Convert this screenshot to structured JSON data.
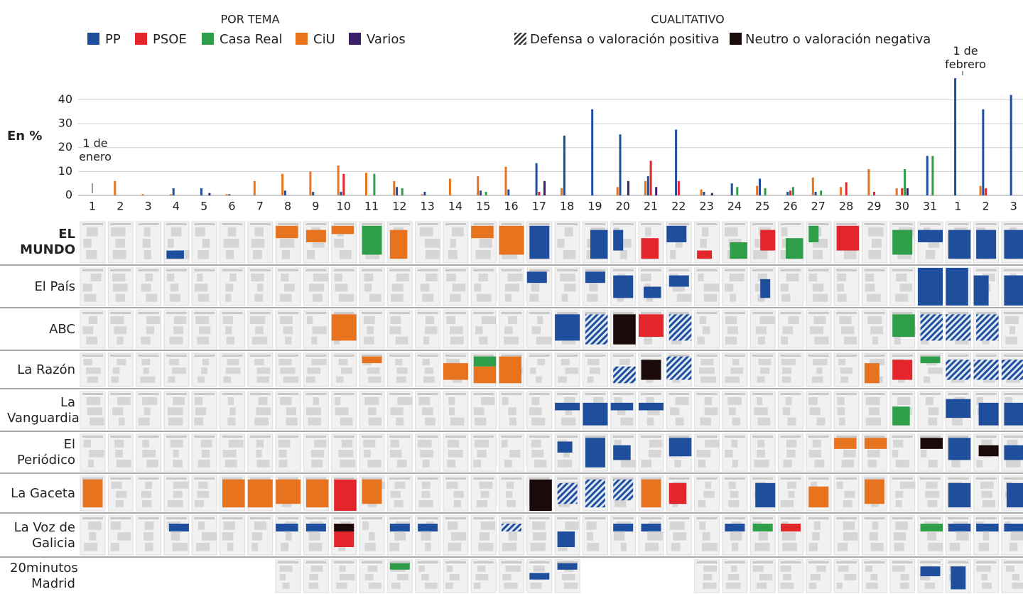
{
  "chart_data": {
    "type": "bar",
    "legend_title": "POR TEMA",
    "y_label": "En %",
    "annotations": [
      "1 de enero",
      "1 de febrero"
    ],
    "categories": [
      "1",
      "2",
      "3",
      "4",
      "5",
      "6",
      "7",
      "8",
      "9",
      "10",
      "11",
      "12",
      "13",
      "14",
      "15",
      "16",
      "17",
      "18",
      "19",
      "20",
      "21",
      "22",
      "23",
      "24",
      "25",
      "26",
      "27",
      "28",
      "29",
      "30",
      "31",
      "1",
      "2",
      "3"
    ],
    "series": [
      {
        "name": "PP",
        "color": "#1f4e9c",
        "values": [
          0,
          0,
          0,
          3,
          3,
          0.5,
          0,
          2,
          1.5,
          1.5,
          0,
          3.5,
          1.5,
          0,
          2,
          2.5,
          13.5,
          25,
          36,
          25.5,
          8,
          27.5,
          1.5,
          5,
          7,
          1.5,
          1.5,
          0,
          0,
          0,
          16.5,
          49,
          36,
          42
        ]
      },
      {
        "name": "PSOE",
        "color": "#e3262b",
        "values": [
          0,
          0,
          0,
          0,
          0,
          0,
          0,
          0,
          0,
          9,
          0,
          0,
          0,
          0,
          0,
          0,
          1.5,
          0,
          0,
          0,
          14.5,
          6,
          0,
          0,
          0,
          2,
          0,
          5.5,
          1.5,
          3,
          0,
          0,
          3,
          0
        ]
      },
      {
        "name": "Casa Real",
        "color": "#2e9e48",
        "values": [
          0,
          0,
          0,
          0,
          0,
          0,
          0,
          0,
          0,
          0,
          9,
          3,
          0,
          0,
          1.5,
          0,
          0,
          0,
          0,
          0,
          0,
          0,
          0,
          3.5,
          3,
          3.5,
          2,
          0,
          0,
          11,
          16.5,
          0,
          0,
          0
        ]
      },
      {
        "name": "CiU",
        "color": "#e8731e",
        "values": [
          0,
          6,
          0.5,
          0.5,
          0,
          0.5,
          6,
          9,
          10,
          12.5,
          9.5,
          6,
          0.5,
          7,
          8,
          12,
          0,
          3,
          0,
          3.5,
          6,
          0,
          2.5,
          0,
          4,
          0,
          7.5,
          3.5,
          11,
          3,
          0,
          0,
          4,
          0
        ]
      },
      {
        "name": "Varios",
        "color": "#3b1f6b",
        "values": [
          0,
          0,
          0,
          0,
          1,
          0,
          0,
          0,
          0,
          0,
          0,
          0,
          0,
          0,
          0,
          0,
          6,
          0,
          0,
          6,
          3.5,
          0,
          1,
          0,
          0,
          0,
          0,
          0,
          0,
          3,
          0,
          0,
          0,
          0
        ]
      }
    ],
    "ylim": [
      0,
      52
    ],
    "yticks": [
      0,
      10,
      20,
      30,
      40
    ],
    "grid": true
  },
  "qualitative": {
    "title": "CUALITATIVO",
    "items": [
      {
        "name": "Defensa o valoración positiva",
        "color": "#1f4e9c"
      },
      {
        "name": "Neutro o valoración negativa",
        "color": "#1a0a0a"
      }
    ]
  },
  "newspapers": [
    "EL MUNDO",
    "El País",
    "ABC",
    "La Razón",
    "La Vanguardia",
    "El Periódico",
    "La Gaceta",
    "La Voz de Galicia",
    "20minutos Madrid"
  ]
}
